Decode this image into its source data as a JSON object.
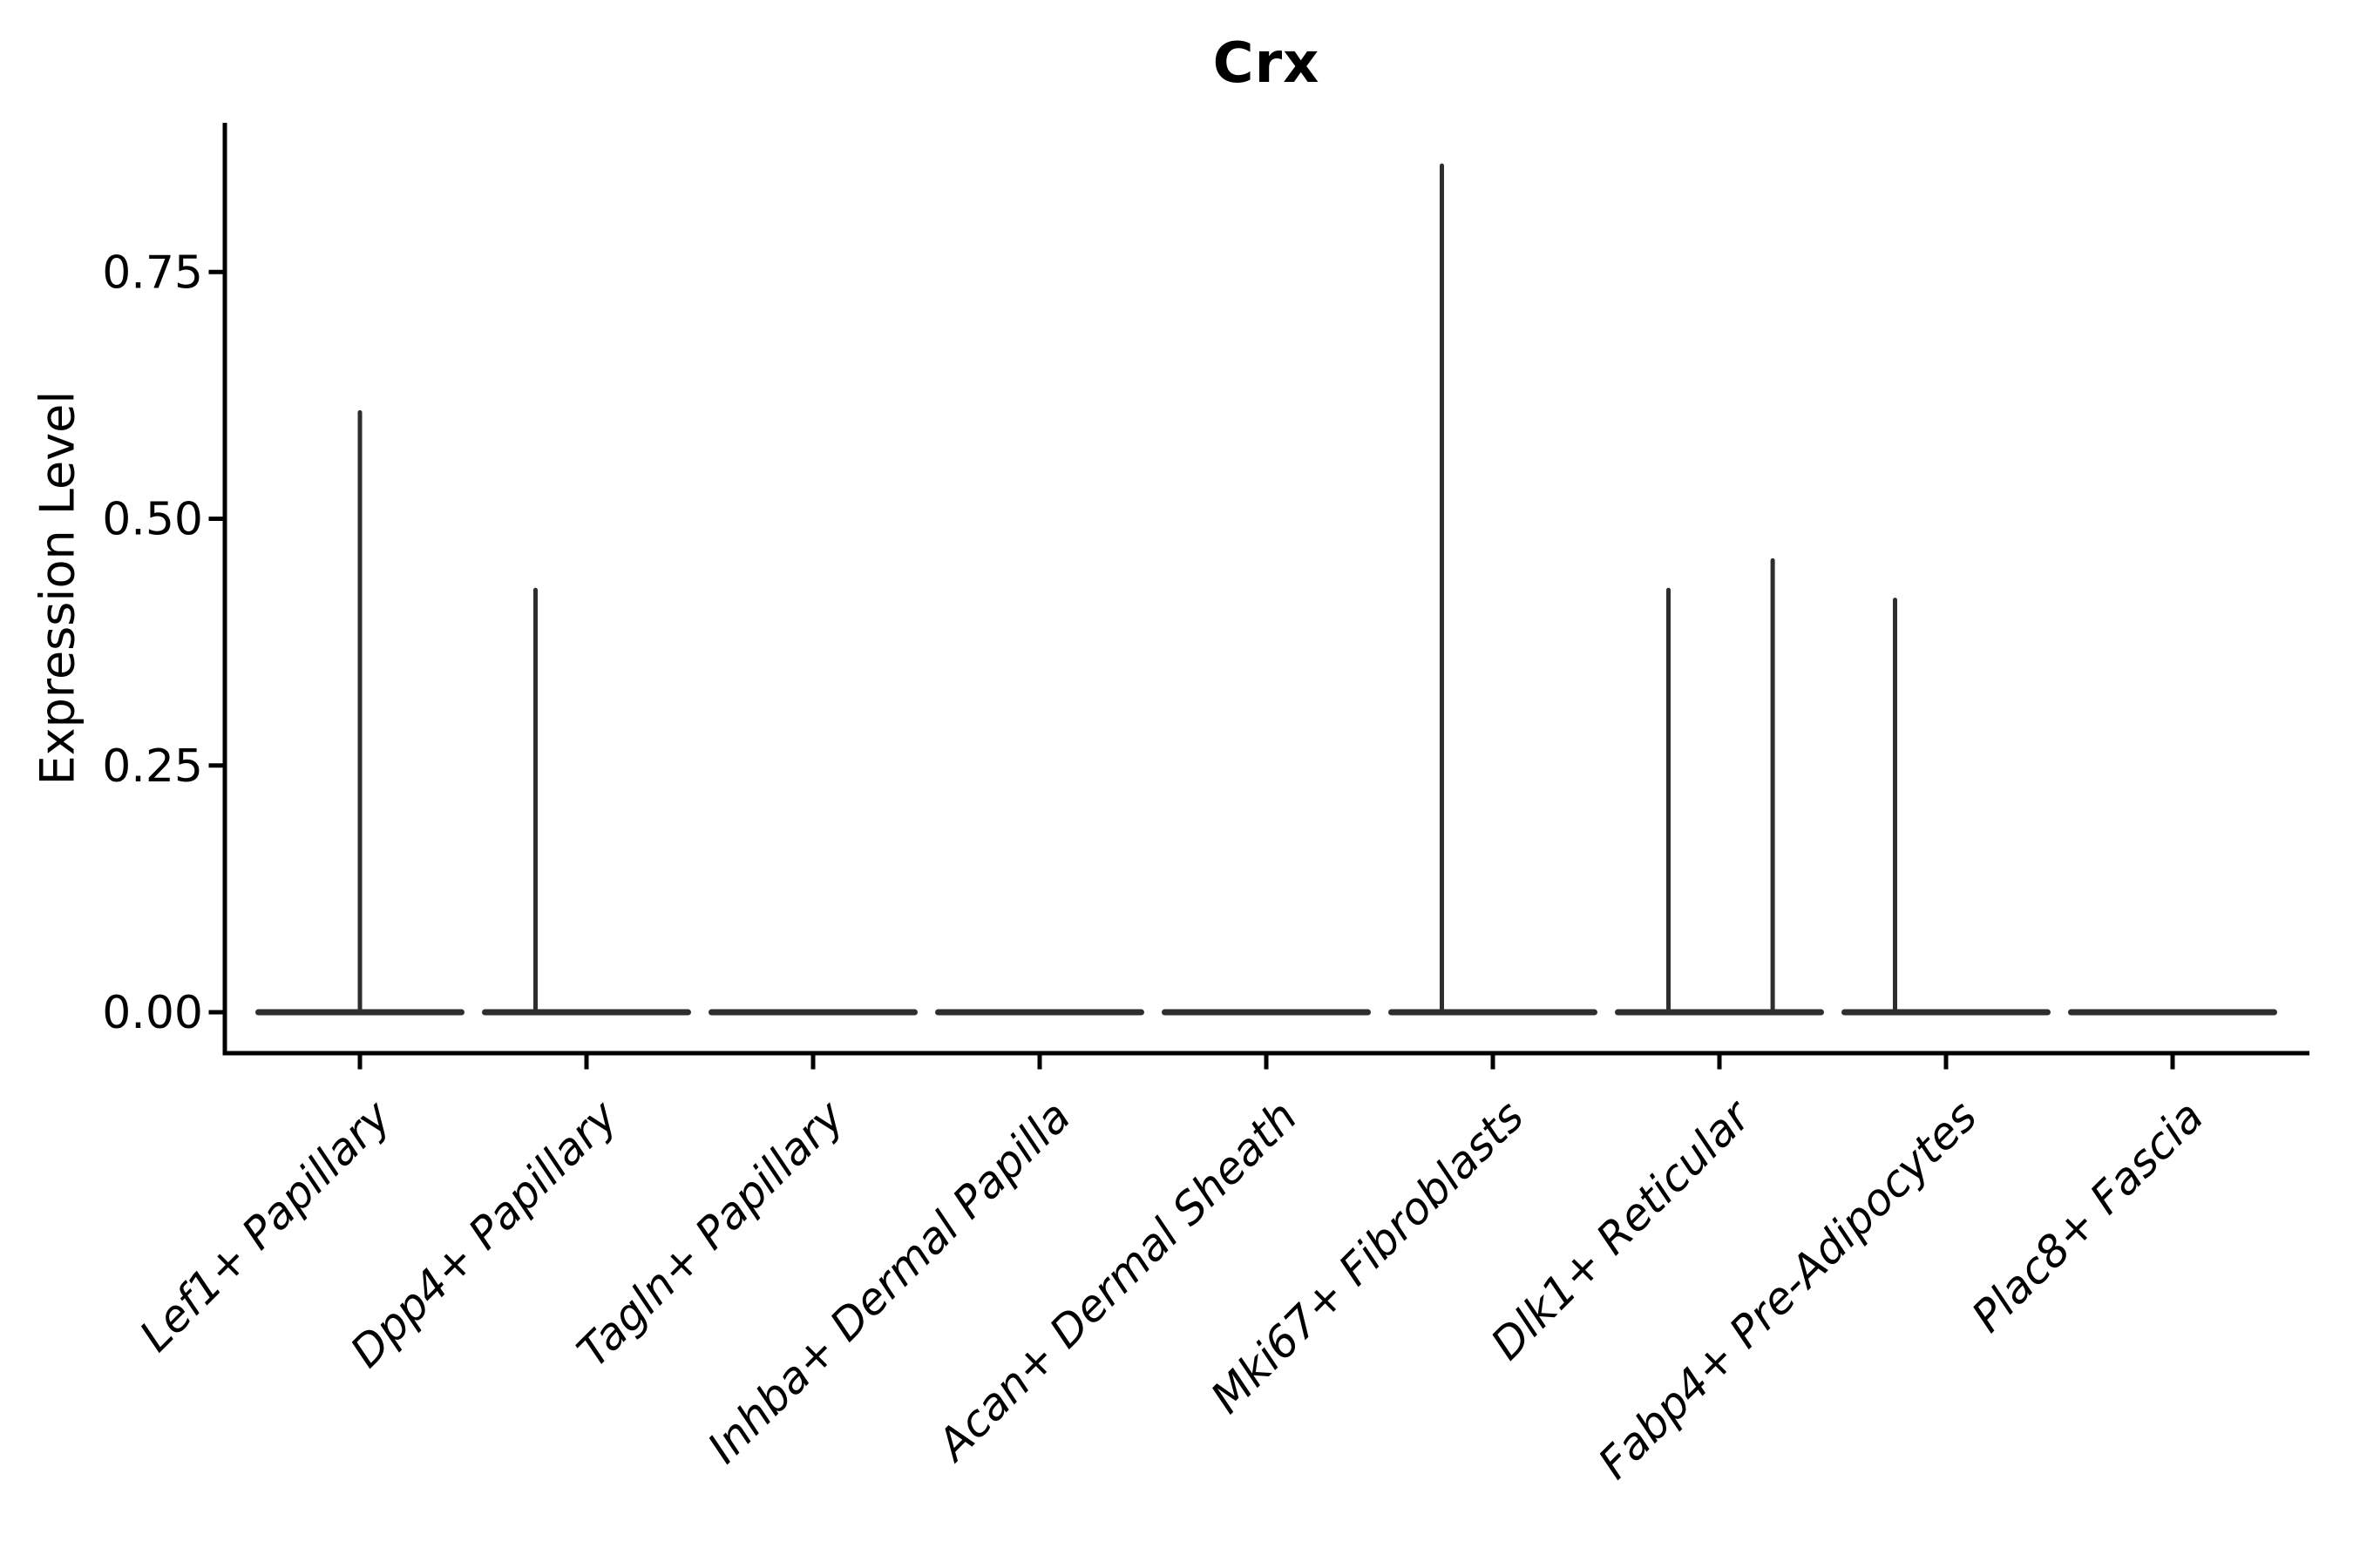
{
  "chart_data": {
    "type": "violin",
    "title": "Crx",
    "ylabel": "Expression Level",
    "xlabel": "",
    "ytick_labels": [
      "0.00",
      "0.25",
      "0.50",
      "0.75"
    ],
    "ytick_values": [
      0.0,
      0.25,
      0.5,
      0.75
    ],
    "ylim": [
      0.0,
      0.9
    ],
    "grid": false,
    "legend": "none",
    "categories": [
      "Lef1+ Papillary",
      "Dpp4+ Papillary",
      "Tagln+ Papillary",
      "Inhba+ Dermal Papilla",
      "Acan+ Dermal Sheath",
      "Mki67+ Fibroblasts",
      "Dlk1+ Reticular",
      "Fabp4+ Pre-Adipocytes",
      "Plac8+ Fascia"
    ],
    "violins": [
      {
        "category": "Lef1+ Papillary",
        "baseline_value": 0.0,
        "max_expression": 0.61,
        "spikes": [
          {
            "x_offset_frac": 0.0,
            "value": 0.61
          }
        ]
      },
      {
        "category": "Dpp4+ Papillary",
        "baseline_value": 0.0,
        "max_expression": 0.43,
        "spikes": [
          {
            "x_offset_frac": -0.225,
            "value": 0.43
          }
        ]
      },
      {
        "category": "Tagln+ Papillary",
        "baseline_value": 0.0,
        "max_expression": 0.0,
        "spikes": []
      },
      {
        "category": "Inhba+ Dermal Papilla",
        "baseline_value": 0.0,
        "max_expression": 0.0,
        "spikes": []
      },
      {
        "category": "Acan+ Dermal Sheath",
        "baseline_value": 0.0,
        "max_expression": 0.0,
        "spikes": []
      },
      {
        "category": "Mki67+ Fibroblasts",
        "baseline_value": 0.0,
        "max_expression": 0.86,
        "spikes": [
          {
            "x_offset_frac": -0.225,
            "value": 0.86
          }
        ]
      },
      {
        "category": "Dlk1+ Reticular",
        "baseline_value": 0.0,
        "max_expression": 0.46,
        "spikes": [
          {
            "x_offset_frac": -0.225,
            "value": 0.43
          },
          {
            "x_offset_frac": 0.235,
            "value": 0.46
          }
        ]
      },
      {
        "category": "Fabp4+ Pre-Adipocytes",
        "baseline_value": 0.0,
        "max_expression": 0.42,
        "spikes": [
          {
            "x_offset_frac": -0.225,
            "value": 0.42
          }
        ]
      },
      {
        "category": "Plac8+ Fascia",
        "baseline_value": 0.0,
        "max_expression": 0.0,
        "spikes": []
      }
    ],
    "colors": {
      "violin_line": "#2e2e2e",
      "axis": "#000000",
      "text": "#000000",
      "background": "#ffffff"
    }
  }
}
